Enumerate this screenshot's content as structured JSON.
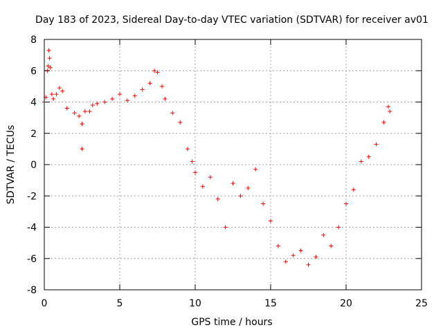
{
  "chart_data": {
    "type": "scatter",
    "title": "Day 183 of 2023, Sidereal Day-to-day VTEC variation (SDTVAR) for receiver av01",
    "xlabel": "GPS time / hours",
    "ylabel": "SDTVAR / TECUs",
    "xlim": [
      0,
      25
    ],
    "ylim": [
      -8,
      8
    ],
    "x_ticks": [
      0,
      5,
      10,
      15,
      20,
      25
    ],
    "y_ticks": [
      -8,
      -6,
      -4,
      -2,
      0,
      2,
      4,
      6,
      8
    ],
    "grid": true,
    "marker": "+",
    "series": [
      {
        "color": "#ff0000",
        "points": [
          [
            0.0,
            4.0
          ],
          [
            0.1,
            4.3
          ],
          [
            0.2,
            6.0
          ],
          [
            0.25,
            6.3
          ],
          [
            0.3,
            7.3
          ],
          [
            0.35,
            6.8
          ],
          [
            0.4,
            6.2
          ],
          [
            0.5,
            4.5
          ],
          [
            0.6,
            4.2
          ],
          [
            0.8,
            4.5
          ],
          [
            1.0,
            4.9
          ],
          [
            1.2,
            4.7
          ],
          [
            1.5,
            3.6
          ],
          [
            2.0,
            3.3
          ],
          [
            2.3,
            3.1
          ],
          [
            2.5,
            2.6
          ],
          [
            2.5,
            1.0
          ],
          [
            2.7,
            3.4
          ],
          [
            3.0,
            3.4
          ],
          [
            3.2,
            3.8
          ],
          [
            3.5,
            3.9
          ],
          [
            4.0,
            4.0
          ],
          [
            4.5,
            4.2
          ],
          [
            5.0,
            4.5
          ],
          [
            5.5,
            4.1
          ],
          [
            6.0,
            4.4
          ],
          [
            6.5,
            4.8
          ],
          [
            7.0,
            5.2
          ],
          [
            7.3,
            6.0
          ],
          [
            7.5,
            5.9
          ],
          [
            7.8,
            5.0
          ],
          [
            8.0,
            4.2
          ],
          [
            8.5,
            3.3
          ],
          [
            9.0,
            2.7
          ],
          [
            9.5,
            1.0
          ],
          [
            9.8,
            0.2
          ],
          [
            10.0,
            -0.5
          ],
          [
            10.5,
            -1.4
          ],
          [
            11.0,
            -0.8
          ],
          [
            11.5,
            -2.2
          ],
          [
            12.0,
            -4.0
          ],
          [
            12.5,
            -1.2
          ],
          [
            13.0,
            -2.0
          ],
          [
            13.5,
            -1.5
          ],
          [
            14.0,
            -0.3
          ],
          [
            14.5,
            -2.5
          ],
          [
            15.0,
            -3.6
          ],
          [
            15.5,
            -5.2
          ],
          [
            16.0,
            -6.2
          ],
          [
            16.5,
            -5.8
          ],
          [
            17.0,
            -5.5
          ],
          [
            17.5,
            -6.4
          ],
          [
            18.0,
            -5.9
          ],
          [
            18.5,
            -4.5
          ],
          [
            19.0,
            -5.2
          ],
          [
            19.5,
            -4.0
          ],
          [
            20.0,
            -2.5
          ],
          [
            20.5,
            -1.6
          ],
          [
            21.0,
            0.2
          ],
          [
            21.5,
            0.5
          ],
          [
            22.0,
            1.3
          ],
          [
            22.5,
            2.7
          ],
          [
            22.8,
            3.7
          ],
          [
            22.9,
            3.4
          ]
        ]
      }
    ]
  }
}
